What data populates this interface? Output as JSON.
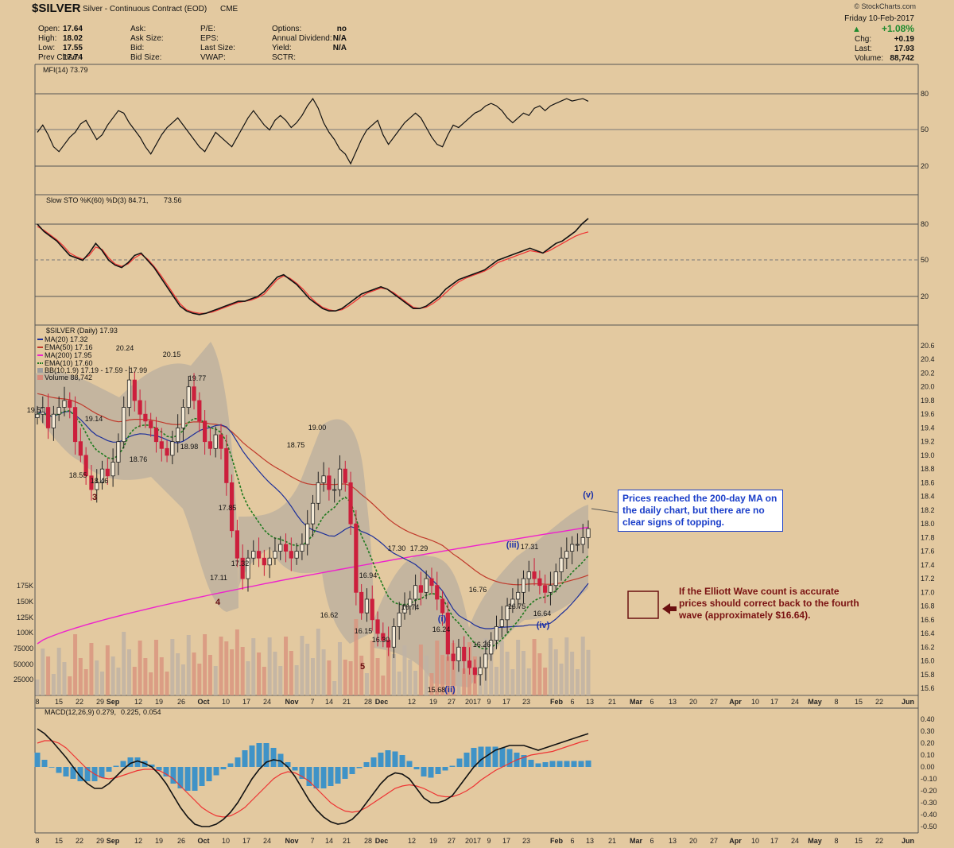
{
  "header": {
    "symbol": "$SILVER",
    "name": "Silver - Continuous Contract (EOD)",
    "exchange": "CME",
    "watermark": "© StockCharts.com",
    "date": "Friday  10-Feb-2017",
    "change_pct": "+1.08%",
    "chg_label": "Chg:",
    "chg": "+0.19",
    "last_label": "Last:",
    "last": "17.93",
    "volume_label": "Volume:",
    "volume": "88,742",
    "fields": [
      {
        "label": "Open:",
        "value": "17.64"
      },
      {
        "label": "High:",
        "value": "18.02"
      },
      {
        "label": "Low:",
        "value": "17.55"
      },
      {
        "label": "Prev Close:",
        "value": "17.74"
      }
    ],
    "fields2": [
      "Ask:",
      "Ask Size:",
      "Bid:",
      "Bid Size:"
    ],
    "fields3": [
      "P/E:",
      "EPS:",
      "Last Size:",
      "VWAP:"
    ],
    "fields4": [
      {
        "label": "Options:",
        "value": "no"
      },
      {
        "label": "Annual Dividend:",
        "value": "N/A"
      },
      {
        "label": "Yield:",
        "value": "N/A"
      },
      {
        "label": "SCTR:",
        "value": ""
      }
    ]
  },
  "panels": {
    "mfi": {
      "legend": "MFI(14) 73.79",
      "ticks": [
        "80",
        "50",
        "20"
      ]
    },
    "sto": {
      "legend_a": "Slow STO %K(60) %D(3) 84.71,",
      "legend_b": "73.56",
      "ticks": [
        "80",
        "50",
        "20"
      ]
    },
    "price": {
      "legend": "$SILVER (Daily) 17.93",
      "ma20": "MA(20) 17.32",
      "ema50": "EMA(50) 17.16",
      "ma200": "MA(200) 17.95",
      "ema10": "EMA(10) 17.60",
      "bb": "BB(10,1.9) 17.19 - 17.59 - 17.99",
      "vol": "Volume 88,742",
      "ticks": [
        "20.6",
        "20.4",
        "20.2",
        "20.0",
        "19.8",
        "19.6",
        "19.4",
        "19.2",
        "19.0",
        "18.8",
        "18.6",
        "18.4",
        "18.2",
        "18.0",
        "17.8",
        "17.6",
        "17.4",
        "17.2",
        "17.0",
        "16.8",
        "16.6",
        "16.4",
        "16.2",
        "16.0",
        "15.8",
        "15.6"
      ],
      "vol_ticks": [
        "175K",
        "150K",
        "125K",
        "100K",
        "75000",
        "50000",
        "25000"
      ]
    },
    "macd": {
      "legend_a": "MACD(12,26,9) 0.279,",
      "legend_b": "0.225,",
      "legend_c": "0.054",
      "ticks": [
        "0.40",
        "0.30",
        "0.20",
        "0.10",
        "0.00",
        "-0.10",
        "-0.20",
        "-0.30",
        "-0.40",
        "-0.50"
      ]
    }
  },
  "x_labels": [
    "8",
    "15",
    "22",
    "29",
    "Sep",
    "12",
    "19",
    "26",
    "Oct",
    "10",
    "17",
    "24",
    "Nov",
    "7",
    "14",
    "21",
    "28",
    "Dec",
    "12",
    "19",
    "27",
    "2017",
    "9",
    "17",
    "23",
    "Feb",
    "6",
    "13",
    "21",
    "Mar",
    "6",
    "13",
    "20",
    "27",
    "Apr",
    "10",
    "17",
    "24",
    "May",
    "8",
    "15",
    "22",
    "Jun"
  ],
  "price_labels": [
    "19.51",
    "19.14",
    "18.55",
    "18.46",
    "18.76",
    "20.24",
    "20.15",
    "19.77",
    "18.98",
    "17.85",
    "17.32",
    "17.11",
    "18.75",
    "19.00",
    "16.62",
    "16.94",
    "16.15",
    "16.30",
    "17.30",
    "17.29",
    "16.74",
    "16.24",
    "15.68",
    "16.26",
    "16.76",
    "16.75",
    "17.31",
    "16.64"
  ],
  "waves": [
    "3",
    "4",
    "5",
    "(i)",
    "(ii)",
    "(iii)",
    "(iv)",
    "(v)"
  ],
  "annotations": {
    "top": "Prices reached the 200-day MA on the daily chart, but there are no clear signs of topping.",
    "bottom": "If the Elliott Wave count is accurate prices should correct back to the fourth wave (approximately $16.64)."
  },
  "colors": {
    "background": "#e3c9a0",
    "up": "#222222",
    "down": "#cc1f3c",
    "ma20": "#1c2f9a",
    "ema50": "#c0392b",
    "ma200": "#ee22cc",
    "ema10": "#1f7a1f",
    "macd_hist": "#3f93c7"
  },
  "chart_data": {
    "type": "candlestick",
    "title": "$SILVER Silver - Continuous Contract (EOD)",
    "ohlc_last": {
      "open": 17.64,
      "high": 18.02,
      "low": 17.55,
      "close": 17.93
    },
    "close": [
      19.6,
      19.7,
      19.4,
      19.6,
      19.7,
      19.8,
      19.7,
      19.2,
      19.0,
      18.7,
      18.5,
      18.6,
      18.8,
      18.7,
      18.9,
      19.2,
      19.7,
      20.1,
      19.8,
      19.6,
      19.5,
      19.4,
      19.2,
      19.1,
      19.0,
      19.2,
      19.4,
      19.7,
      20.0,
      19.8,
      19.5,
      19.2,
      19.1,
      19.3,
      19.1,
      18.6,
      17.9,
      17.5,
      17.2,
      17.5,
      17.6,
      17.5,
      17.4,
      17.5,
      17.6,
      17.7,
      17.6,
      17.5,
      17.6,
      17.7,
      18.0,
      18.3,
      18.6,
      18.7,
      18.5,
      18.5,
      18.8,
      18.6,
      18.0,
      17.0,
      16.7,
      16.9,
      16.6,
      16.4,
      16.3,
      16.2,
      16.5,
      16.7,
      16.8,
      16.9,
      17.1,
      17.0,
      17.2,
      17.1,
      16.9,
      16.7,
      16.1,
      16.0,
      16.2,
      16.0,
      15.9,
      15.8,
      15.9,
      16.1,
      16.3,
      16.5,
      16.6,
      16.8,
      16.9,
      17.0,
      17.2,
      17.3,
      17.2,
      17.1,
      17.0,
      17.1,
      17.3,
      17.5,
      17.6,
      17.7,
      17.7,
      17.8,
      17.93
    ],
    "mfi": [
      48,
      54,
      46,
      36,
      32,
      38,
      44,
      48,
      55,
      58,
      50,
      42,
      46,
      54,
      60,
      66,
      64,
      56,
      50,
      44,
      36,
      30,
      38,
      46,
      52,
      56,
      60,
      54,
      48,
      42,
      36,
      32,
      40,
      48,
      44,
      40,
      36,
      44,
      52,
      60,
      66,
      60,
      54,
      50,
      58,
      62,
      58,
      52,
      56,
      62,
      70,
      76,
      68,
      56,
      48,
      42,
      34,
      30,
      22,
      32,
      42,
      50,
      54,
      58,
      46,
      38,
      44,
      50,
      56,
      60,
      64,
      60,
      52,
      44,
      38,
      36,
      46,
      54,
      52,
      56,
      60,
      64,
      66,
      70,
      72,
      70,
      66,
      60,
      56,
      60,
      64,
      62,
      68,
      70,
      66,
      70,
      72,
      74,
      76,
      74,
      75,
      76,
      73.79
    ],
    "stoch_k": [
      80,
      74,
      70,
      66,
      60,
      54,
      52,
      50,
      56,
      64,
      58,
      50,
      46,
      44,
      48,
      54,
      56,
      50,
      44,
      36,
      28,
      20,
      12,
      8,
      6,
      5,
      6,
      8,
      10,
      12,
      14,
      16,
      16,
      18,
      20,
      24,
      30,
      36,
      38,
      34,
      30,
      24,
      18,
      14,
      10,
      8,
      8,
      10,
      14,
      18,
      22,
      24,
      26,
      28,
      26,
      22,
      18,
      14,
      10,
      10,
      12,
      16,
      20,
      26,
      30,
      34,
      36,
      38,
      40,
      42,
      46,
      50,
      52,
      54,
      56,
      58,
      60,
      58,
      56,
      60,
      64,
      66,
      70,
      74,
      80,
      84.71
    ],
    "stoch_d": [
      78,
      75,
      71,
      67,
      62,
      56,
      53,
      51,
      54,
      61,
      59,
      52,
      47,
      45,
      47,
      52,
      55,
      51,
      45,
      38,
      30,
      22,
      14,
      9,
      7,
      6,
      6,
      7,
      9,
      11,
      13,
      15,
      16,
      17,
      19,
      22,
      28,
      34,
      37,
      35,
      31,
      26,
      20,
      15,
      11,
      9,
      8,
      9,
      12,
      16,
      20,
      23,
      25,
      27,
      26,
      23,
      19,
      15,
      11,
      10,
      11,
      14,
      18,
      23,
      28,
      32,
      35,
      37,
      39,
      41,
      44,
      48,
      50,
      52,
      54,
      56,
      58,
      57,
      56,
      58,
      61,
      64,
      67,
      70,
      72,
      73.56
    ],
    "macd": [
      0.32,
      0.28,
      0.22,
      0.15,
      0.08,
      0.0,
      -0.08,
      -0.14,
      -0.18,
      -0.18,
      -0.14,
      -0.08,
      -0.02,
      0.03,
      0.05,
      0.03,
      0.0,
      -0.06,
      -0.14,
      -0.24,
      -0.34,
      -0.42,
      -0.48,
      -0.5,
      -0.5,
      -0.48,
      -0.44,
      -0.38,
      -0.3,
      -0.2,
      -0.1,
      -0.02,
      0.04,
      0.06,
      0.05,
      0.0,
      -0.08,
      -0.18,
      -0.28,
      -0.36,
      -0.42,
      -0.46,
      -0.48,
      -0.47,
      -0.44,
      -0.38,
      -0.3,
      -0.22,
      -0.14,
      -0.08,
      -0.05,
      -0.06,
      -0.1,
      -0.18,
      -0.26,
      -0.3,
      -0.3,
      -0.28,
      -0.24,
      -0.16,
      -0.08,
      0.0,
      0.06,
      0.1,
      0.14,
      0.16,
      0.18,
      0.18,
      0.18,
      0.16,
      0.14,
      0.16,
      0.18,
      0.2,
      0.22,
      0.24,
      0.26,
      0.279
    ],
    "signal": [
      0.2,
      0.22,
      0.22,
      0.2,
      0.16,
      0.1,
      0.04,
      -0.02,
      -0.06,
      -0.09,
      -0.1,
      -0.09,
      -0.07,
      -0.05,
      -0.03,
      -0.02,
      -0.02,
      -0.03,
      -0.06,
      -0.1,
      -0.16,
      -0.22,
      -0.28,
      -0.34,
      -0.38,
      -0.41,
      -0.42,
      -0.41,
      -0.38,
      -0.34,
      -0.28,
      -0.22,
      -0.16,
      -0.1,
      -0.06,
      -0.04,
      -0.05,
      -0.08,
      -0.12,
      -0.18,
      -0.24,
      -0.3,
      -0.34,
      -0.37,
      -0.38,
      -0.37,
      -0.34,
      -0.3,
      -0.26,
      -0.22,
      -0.18,
      -0.16,
      -0.15,
      -0.16,
      -0.18,
      -0.21,
      -0.24,
      -0.25,
      -0.25,
      -0.23,
      -0.2,
      -0.16,
      -0.11,
      -0.07,
      -0.03,
      0.0,
      0.03,
      0.06,
      0.08,
      0.1,
      0.11,
      0.12,
      0.13,
      0.15,
      0.17,
      0.19,
      0.21,
      0.225
    ]
  }
}
